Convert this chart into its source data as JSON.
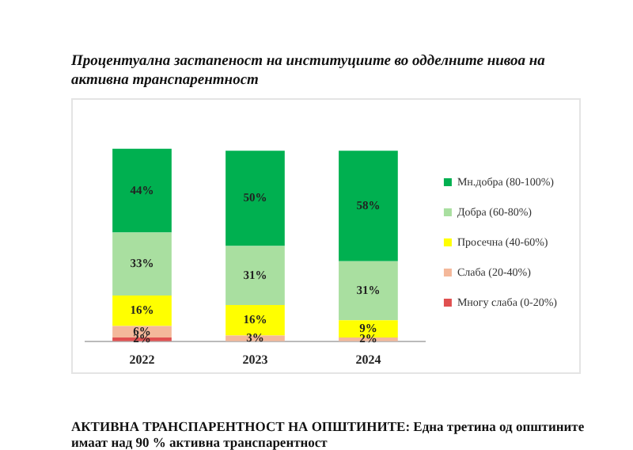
{
  "chart_data": {
    "type": "bar",
    "stacked": true,
    "title": "Процентуална застапеност на институциите во одделните нивоа на активна транспарентност",
    "categories": [
      "2022",
      "2023",
      "2024"
    ],
    "series": [
      {
        "name": "Многу слаба (0-20%)",
        "color": "#e05050",
        "values": [
          2,
          null,
          null
        ],
        "value_labels": [
          "2%",
          null,
          null
        ]
      },
      {
        "name": "Слаба (20-40%)",
        "color": "#f4b89a",
        "values": [
          6,
          3,
          2
        ],
        "value_labels": [
          "6%",
          "3%",
          "2%"
        ]
      },
      {
        "name": "Просечна (40-60%)",
        "color": "#ffff00",
        "values": [
          16,
          16,
          9
        ],
        "value_labels": [
          "16%",
          "16%",
          "9%"
        ]
      },
      {
        "name": "Добра (60-80%)",
        "color": "#a9dfa0",
        "values": [
          33,
          31,
          31
        ],
        "value_labels": [
          "33%",
          "31%",
          "31%"
        ]
      },
      {
        "name": "Мн.добра (80-100%)",
        "color": "#00b050",
        "values": [
          44,
          50,
          58
        ],
        "value_labels": [
          "44%",
          "50%",
          "58%"
        ]
      }
    ],
    "legend": "right",
    "grid": false,
    "annotations": [
      "АКТИВНА ТРАНСПАРЕНТНОСТ НА ОПШТИНИТЕ: Една третина од општините имаат над 90 % активна транспарентност"
    ]
  }
}
